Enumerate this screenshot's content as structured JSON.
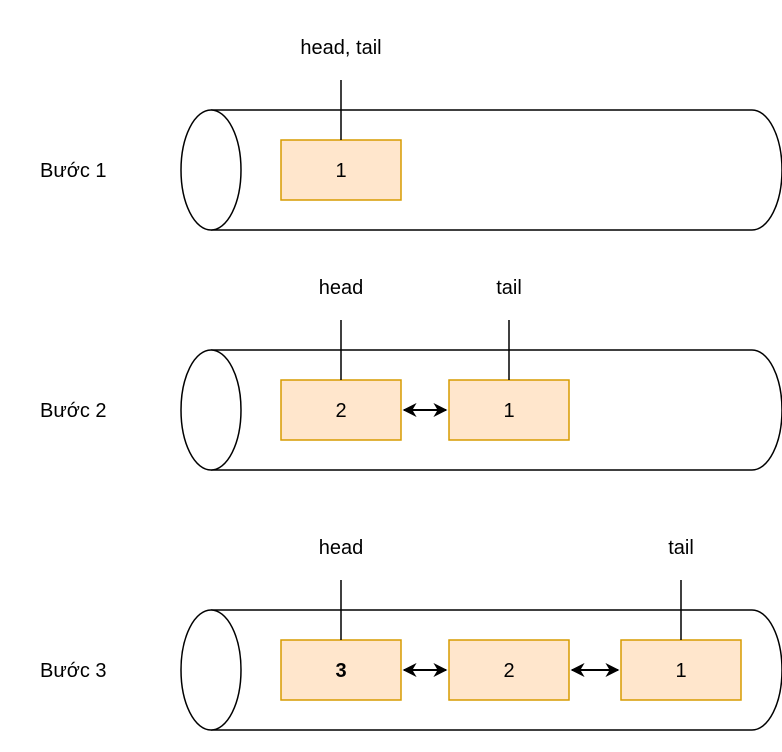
{
  "colors": {
    "node_fill": "#ffe6cc",
    "node_stroke": "#d79b00",
    "line": "#000000"
  },
  "steps": [
    {
      "label": "Bước 1",
      "nodes": [
        {
          "value": "1",
          "bold": false
        }
      ],
      "pointers": [
        {
          "label": "head, tail",
          "node": 0
        }
      ]
    },
    {
      "label": "Bước 2",
      "nodes": [
        {
          "value": "2",
          "bold": false
        },
        {
          "value": "1",
          "bold": false
        }
      ],
      "pointers": [
        {
          "label": "head",
          "node": 0
        },
        {
          "label": "tail",
          "node": 1
        }
      ]
    },
    {
      "label": "Bước 3",
      "nodes": [
        {
          "value": "3",
          "bold": true
        },
        {
          "value": "2",
          "bold": false
        },
        {
          "value": "1",
          "bold": false
        }
      ],
      "pointers": [
        {
          "label": "head",
          "node": 0
        },
        {
          "label": "tail",
          "node": 2
        }
      ]
    }
  ]
}
